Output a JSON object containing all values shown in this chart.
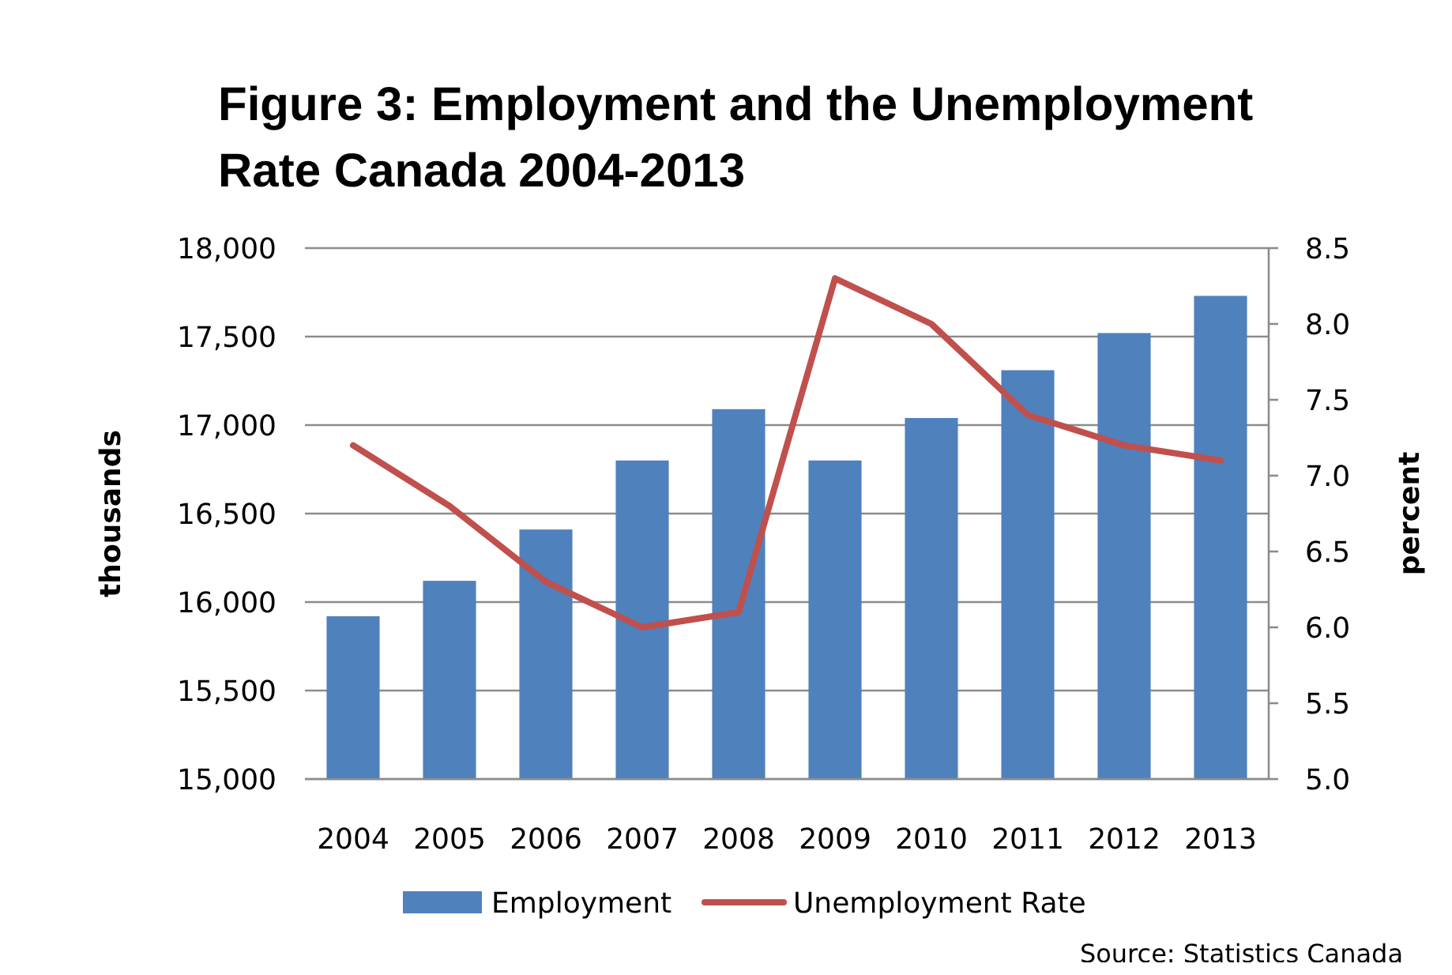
{
  "chart_data": {
    "type": "bar",
    "title": "Figure 3: Employment and the Unemployment Rate Canada 2004-2013",
    "ylabel": "thousands",
    "y2label": "percent",
    "categories": [
      "2004",
      "2005",
      "2006",
      "2007",
      "2008",
      "2009",
      "2010",
      "2011",
      "2012",
      "2013"
    ],
    "series": [
      {
        "name": "Employment",
        "color": "#4f81bd",
        "values": [
          15920,
          16120,
          16410,
          16800,
          17090,
          16800,
          17040,
          17310,
          17520,
          17730
        ]
      },
      {
        "name": "Unemployment Rate",
        "type": "line",
        "axis": "y2",
        "color": "#c0504d",
        "values": [
          7.2,
          6.8,
          6.3,
          6.0,
          6.1,
          8.3,
          8.0,
          7.4,
          7.2,
          7.1
        ]
      }
    ],
    "ylim": [
      15000,
      18000
    ],
    "yticks": [
      {
        "value": 15000,
        "label": "15,000"
      },
      {
        "value": 15500,
        "label": "15,500"
      },
      {
        "value": 16000,
        "label": "16,000"
      },
      {
        "value": 16500,
        "label": "16,500"
      },
      {
        "value": 17000,
        "label": "17,000"
      },
      {
        "value": 17500,
        "label": "17,500"
      },
      {
        "value": 18000,
        "label": "18,000"
      }
    ],
    "y2lim": [
      5,
      8.5
    ],
    "y2ticks": [
      {
        "value": 5,
        "label": "5.0"
      },
      {
        "value": 5.5,
        "label": "5.5"
      },
      {
        "value": 6,
        "label": "6.0"
      },
      {
        "value": 6.5,
        "label": "6.5"
      },
      {
        "value": 7,
        "label": "7.0"
      },
      {
        "value": 7.5,
        "label": "7.5"
      },
      {
        "value": 8,
        "label": "8.0"
      },
      {
        "value": 8.5,
        "label": "8.5"
      }
    ],
    "grid": "y",
    "legend": "bottom",
    "annotations": [
      "Source: Statistics Canada"
    ]
  }
}
